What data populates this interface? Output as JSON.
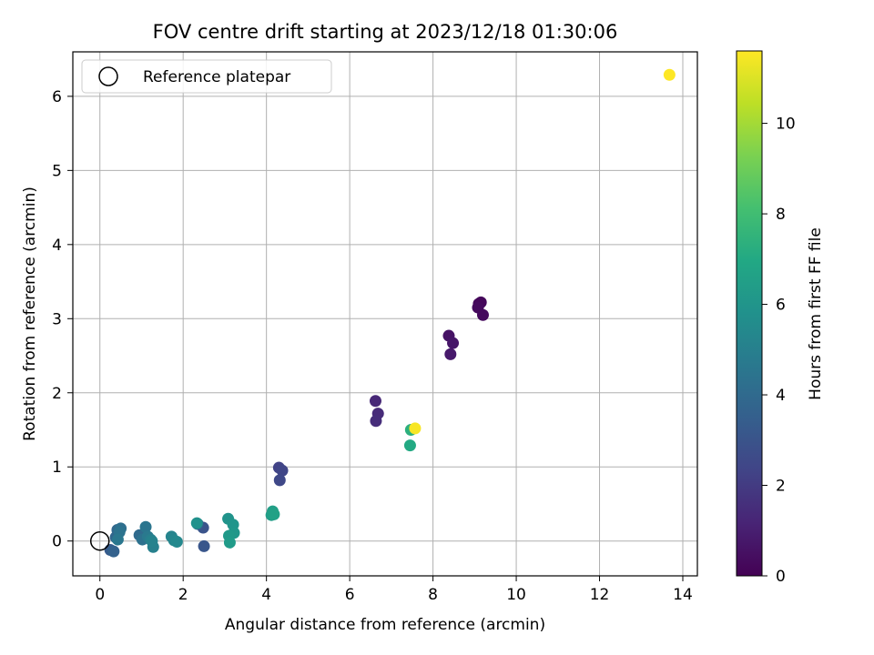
{
  "chart_data": {
    "type": "scatter",
    "title": "FOV centre drift starting at 2023/12/18 01:30:06",
    "xlabel": "Angular distance from reference (arcmin)",
    "ylabel": "Rotation from reference (arcmin)",
    "xlim": [
      -0.65,
      14.35
    ],
    "ylim": [
      -0.47,
      6.6
    ],
    "x_ticks": [
      0,
      2,
      4,
      6,
      8,
      10,
      12,
      14
    ],
    "y_ticks": [
      0,
      1,
      2,
      3,
      4,
      5,
      6
    ],
    "grid": true,
    "legend": {
      "placement": "upper-left",
      "entries": [
        {
          "label": "Reference platepar",
          "marker": "open-circle"
        }
      ]
    },
    "reference": {
      "x": 0,
      "y": 0
    },
    "colorbar": {
      "label": "Hours from first FF file",
      "range": [
        0,
        11.6
      ],
      "ticks": [
        0,
        2,
        4,
        6,
        8,
        10
      ],
      "colormap": "viridis"
    },
    "points": [
      {
        "x": 9.1,
        "y": 3.2,
        "h": 0.2
      },
      {
        "x": 9.15,
        "y": 3.22,
        "h": 0.2
      },
      {
        "x": 9.08,
        "y": 3.15,
        "h": 0.3
      },
      {
        "x": 9.2,
        "y": 3.05,
        "h": 0.3
      },
      {
        "x": 8.38,
        "y": 2.77,
        "h": 0.6
      },
      {
        "x": 8.48,
        "y": 2.67,
        "h": 0.7
      },
      {
        "x": 8.42,
        "y": 2.52,
        "h": 0.8
      },
      {
        "x": 6.62,
        "y": 1.89,
        "h": 1.3
      },
      {
        "x": 6.68,
        "y": 1.72,
        "h": 1.4
      },
      {
        "x": 6.63,
        "y": 1.62,
        "h": 1.5
      },
      {
        "x": 4.3,
        "y": 0.99,
        "h": 2.3
      },
      {
        "x": 4.38,
        "y": 0.95,
        "h": 2.4
      },
      {
        "x": 4.32,
        "y": 0.82,
        "h": 2.5
      },
      {
        "x": 2.48,
        "y": 0.18,
        "h": 3.0
      },
      {
        "x": 2.5,
        "y": -0.07,
        "h": 3.1
      },
      {
        "x": 2.35,
        "y": 0.23,
        "h": 3.5
      },
      {
        "x": 0.25,
        "y": -0.12,
        "h": 3.3
      },
      {
        "x": 0.33,
        "y": -0.14,
        "h": 3.6
      },
      {
        "x": 0.38,
        "y": 0.05,
        "h": 3.8
      },
      {
        "x": 0.42,
        "y": 0.15,
        "h": 3.9
      },
      {
        "x": 0.5,
        "y": 0.17,
        "h": 4.2
      },
      {
        "x": 0.47,
        "y": 0.12,
        "h": 4.4
      },
      {
        "x": 0.43,
        "y": 0.02,
        "h": 4.6
      },
      {
        "x": 0.95,
        "y": 0.08,
        "h": 4.0
      },
      {
        "x": 1.02,
        "y": 0.02,
        "h": 4.3
      },
      {
        "x": 1.1,
        "y": 0.19,
        "h": 4.5
      },
      {
        "x": 1.15,
        "y": 0.06,
        "h": 4.7
      },
      {
        "x": 1.22,
        "y": 0.02,
        "h": 4.9
      },
      {
        "x": 1.28,
        "y": -0.08,
        "h": 5.0
      },
      {
        "x": 1.25,
        "y": 0.0,
        "h": 5.1
      },
      {
        "x": 1.72,
        "y": 0.06,
        "h": 5.2
      },
      {
        "x": 1.78,
        "y": 0.01,
        "h": 5.3
      },
      {
        "x": 1.85,
        "y": -0.01,
        "h": 5.4
      },
      {
        "x": 2.33,
        "y": 0.24,
        "h": 5.8
      },
      {
        "x": 3.08,
        "y": 0.3,
        "h": 5.9
      },
      {
        "x": 3.2,
        "y": 0.22,
        "h": 6.0
      },
      {
        "x": 3.22,
        "y": 0.11,
        "h": 6.1
      },
      {
        "x": 3.1,
        "y": 0.07,
        "h": 6.2
      },
      {
        "x": 3.12,
        "y": -0.02,
        "h": 6.3
      },
      {
        "x": 4.12,
        "y": 0.35,
        "h": 6.4
      },
      {
        "x": 4.15,
        "y": 0.4,
        "h": 6.5
      },
      {
        "x": 4.18,
        "y": 0.36,
        "h": 6.6
      },
      {
        "x": 7.45,
        "y": 1.29,
        "h": 7.0
      },
      {
        "x": 7.47,
        "y": 1.5,
        "h": 7.3
      },
      {
        "x": 7.57,
        "y": 1.52,
        "h": 11.5
      },
      {
        "x": 13.68,
        "y": 6.29,
        "h": 11.6
      }
    ]
  }
}
